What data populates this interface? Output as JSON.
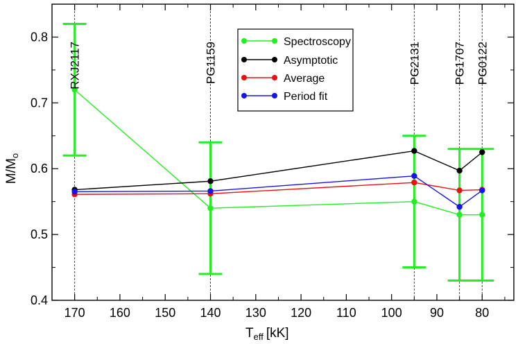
{
  "chart_data": {
    "type": "line",
    "xlabel": "T",
    "xlabel_sub": "eff",
    "xlabel_unit": "[kK]",
    "ylabel": "M/M",
    "ylabel_sub": "o",
    "xlim": [
      175,
      73
    ],
    "ylim": [
      0.4,
      0.85
    ],
    "x_ticks": [
      170,
      160,
      150,
      140,
      130,
      120,
      110,
      100,
      90,
      80
    ],
    "y_ticks": [
      0.4,
      0.5,
      0.6,
      0.7,
      0.8
    ],
    "y_tick_labels": [
      "0.4",
      "0.5",
      "0.6",
      "0.7",
      "0.8"
    ],
    "stars": [
      {
        "name": "RXJ2117",
        "teff": 170
      },
      {
        "name": "PG1159",
        "teff": 140
      },
      {
        "name": "PG2131",
        "teff": 95
      },
      {
        "name": "PG1707",
        "teff": 85
      },
      {
        "name": "PG0122",
        "teff": 80
      }
    ],
    "x": [
      170,
      140,
      95,
      85,
      80
    ],
    "series": [
      {
        "name": "Spectroscopy",
        "color": "#22ee22",
        "values": [
          0.72,
          0.54,
          0.55,
          0.53,
          0.53
        ],
        "errors": [
          0.1,
          0.1,
          0.1,
          0.1,
          0.1
        ]
      },
      {
        "name": "Asymptotic",
        "color": "#000000",
        "values": [
          0.568,
          0.581,
          0.627,
          0.597,
          0.625
        ]
      },
      {
        "name": "Average",
        "color": "#e81010",
        "values": [
          0.561,
          0.562,
          0.579,
          0.567,
          0.568
        ]
      },
      {
        "name": "Period fit",
        "color": "#1414e8",
        "values": [
          0.565,
          0.566,
          0.589,
          0.542,
          0.567
        ]
      }
    ],
    "legend_position": "top-center"
  }
}
